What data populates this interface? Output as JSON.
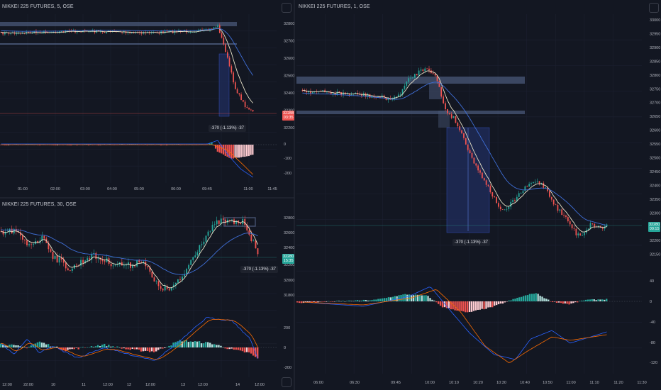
{
  "colors": {
    "background": "#131722",
    "grid": "#1c2030",
    "up": "#26a69a",
    "down": "#ef5350",
    "zone": "#4a5878",
    "box_fill": "#1f2c5a",
    "box_stroke": "#3b5bdb",
    "ma_fast": "#e8e2c8",
    "ma_slow": "#3f6fd8",
    "macd_line": "#2962ff",
    "signal_line": "#ff6d00",
    "hist_up_strong": "#26a69a",
    "hist_up_weak": "#b2dfdb",
    "hist_down_strong": "#ef5350",
    "hist_down_weak": "#ffcdd2",
    "price_tag_red": "#ef5350",
    "price_tag_green": "#26a69a"
  },
  "panes": {
    "top_left": {
      "title": "NIKKEI 225 FUTURES, 5, OSE",
      "price_axis": [
        "32800",
        "32700",
        "32600",
        "32500",
        "32400",
        "32300",
        "32200"
      ],
      "price_tag": "32288\n03:35",
      "indicator_axis": [
        "0",
        "-100",
        "-200"
      ],
      "time_axis": [
        "01:00",
        "02:00",
        "03:00",
        "04:00",
        "05:00",
        "06:00",
        "09:45",
        "11:00",
        "11:45"
      ],
      "measure_label": "-370 (-1.13%) -37"
    },
    "bottom_left": {
      "title": "NIKKEI 225 FUTURES, 30, OSE",
      "price_axis": [
        "32800",
        "32600",
        "32400",
        "32200",
        "32000",
        "31800"
      ],
      "price_tag": "32280\n15:35",
      "indicator_axis": [
        "200",
        "0",
        "-200"
      ],
      "time_axis": [
        "12:00",
        "22:00",
        "10",
        "11",
        "12:00",
        "12",
        "12:00",
        "13",
        "12:00",
        "14",
        "12:00"
      ],
      "measure_label": "-370 (-1.13%) -37"
    },
    "right": {
      "title": "NIKKEI 225 FUTURES, 1, OSE",
      "price_axis": [
        "33000",
        "32950",
        "32900",
        "32850",
        "32800",
        "32750",
        "32700",
        "32650",
        "32600",
        "32550",
        "32500",
        "32450",
        "32400",
        "32350",
        "32300",
        "32250",
        "32200",
        "32150"
      ],
      "price_tag": "32280\n00:15",
      "indicator_axis": [
        "40",
        "0",
        "-40",
        "-80",
        "-120"
      ],
      "time_axis": [
        "06:00",
        "06:30",
        "09:45",
        "10:00",
        "10:10",
        "10:20",
        "10:30",
        "10:40",
        "10:50",
        "11:00",
        "11:10",
        "11:20",
        "11:30"
      ],
      "measure_label": "-370 (-1.13%) -37"
    }
  }
}
